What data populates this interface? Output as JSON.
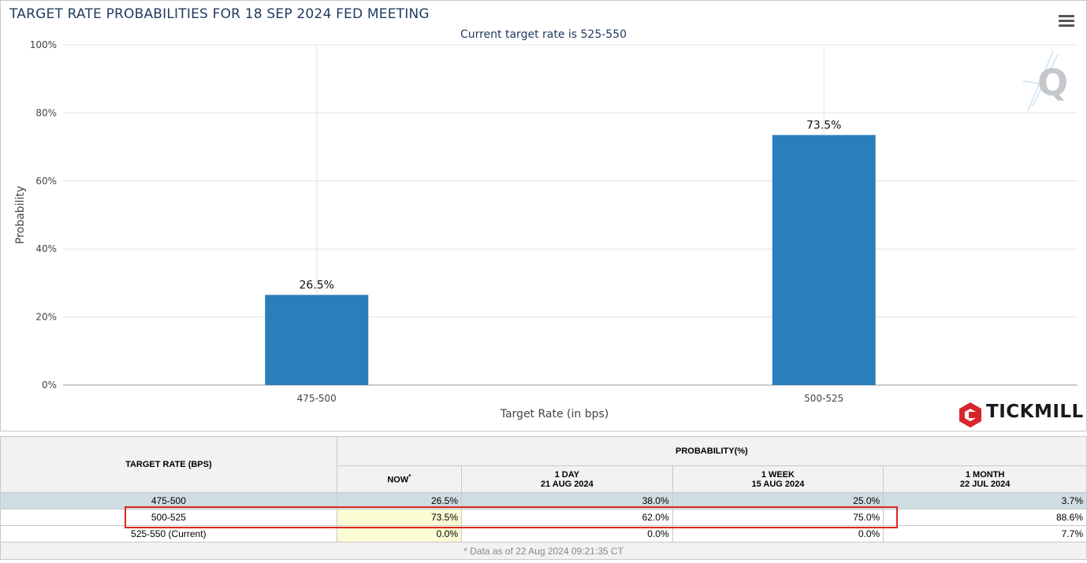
{
  "chart_data": {
    "type": "bar",
    "title": "TARGET RATE PROBABILITIES FOR 18 SEP 2024 FED MEETING",
    "subtitle": "Current target rate is 525-550",
    "xlabel": "Target Rate (in bps)",
    "ylabel": "Probability",
    "categories": [
      "475-500",
      "500-525"
    ],
    "values": [
      26.5,
      73.5
    ],
    "data_labels": [
      "26.5%",
      "73.5%"
    ],
    "ylim": [
      0,
      100
    ],
    "yticks": [
      0,
      20,
      40,
      60,
      80,
      100
    ],
    "ytick_labels": [
      "0%",
      "20%",
      "40%",
      "60%",
      "80%",
      "100%"
    ],
    "grid": true,
    "bar_color": "#2b7dbb"
  },
  "branding": {
    "name": "TICKMILL",
    "brand_color": "#d7262b",
    "q_logo": "Q"
  },
  "table": {
    "header_target": "TARGET RATE (BPS)",
    "header_prob": "PROBABILITY(%)",
    "columns": [
      {
        "line1": "NOW",
        "line2": "",
        "mark": "*"
      },
      {
        "line1": "1 DAY",
        "line2": "21 AUG 2024",
        "mark": ""
      },
      {
        "line1": "1 WEEK",
        "line2": "15 AUG 2024",
        "mark": ""
      },
      {
        "line1": "1 MONTH",
        "line2": "22 JUL 2024",
        "mark": ""
      }
    ],
    "rows": [
      {
        "rate": "475-500",
        "values": [
          "26.5%",
          "38.0%",
          "25.0%",
          "3.7%"
        ]
      },
      {
        "rate": "500-525",
        "values": [
          "73.5%",
          "62.0%",
          "75.0%",
          "88.6%"
        ]
      },
      {
        "rate": "525-550 (Current)",
        "values": [
          "0.0%",
          "0.0%",
          "0.0%",
          "7.7%"
        ]
      }
    ],
    "footnote": "* Data as of 22 Aug 2024 09:21:35 CT",
    "highlight_color": "#e0261f"
  }
}
